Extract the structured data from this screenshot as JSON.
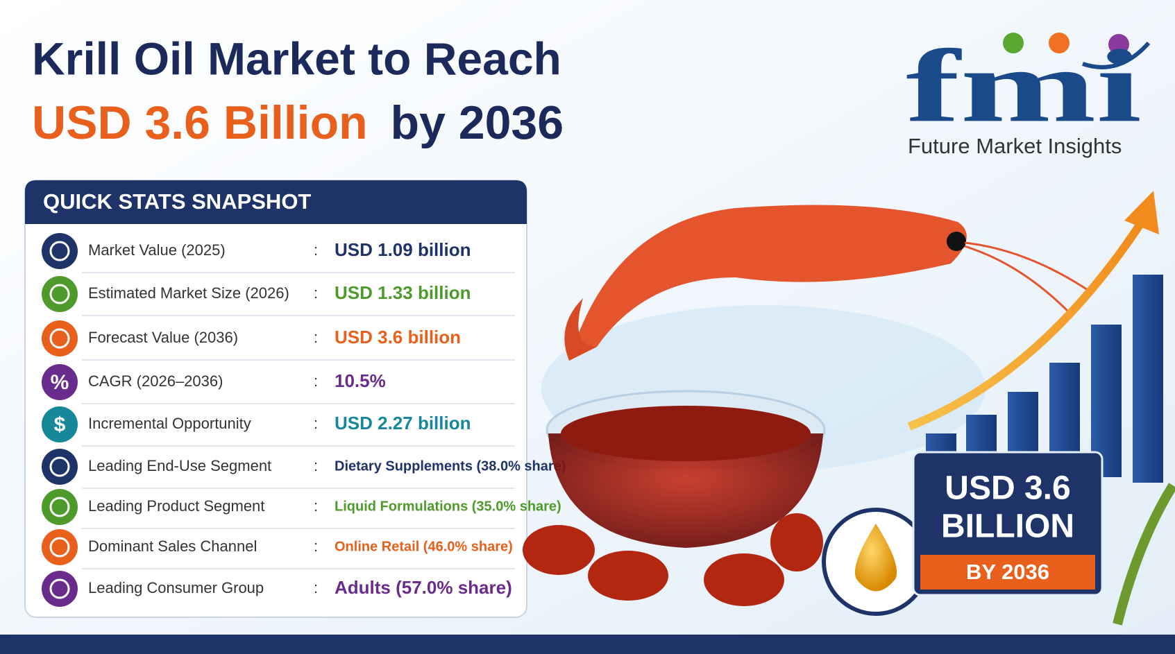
{
  "header": {
    "title_line1": "Krill Oil Market to Reach",
    "title_highlight": "USD 3.6 Billion",
    "title_rest": "by 2036"
  },
  "logo": {
    "letters": "fmi",
    "name": "Future Market Insights"
  },
  "stats": {
    "title": "QUICK STATS SNAPSHOT",
    "separator": ":",
    "rows": [
      {
        "label": "Market Value (2025)",
        "value": "USD 1.09 billion"
      },
      {
        "label": "Estimated Market Size (2026)",
        "value": "USD 1.33 billion"
      },
      {
        "label": "Forecast Value (2036)",
        "value": "USD 3.6 billion"
      },
      {
        "label": "CAGR (2026–2036)",
        "value": "10.5%",
        "icon": "%"
      },
      {
        "label": "Incremental Opportunity",
        "value": "USD 2.27 billion",
        "icon": "$"
      },
      {
        "label": "Leading End-Use Segment",
        "value": "Dietary Supplements (38.0% share)"
      },
      {
        "label": "Leading Product Segment",
        "value": "Liquid Formulations (35.0% share)"
      },
      {
        "label": "Dominant Sales Channel",
        "value": "Online Retail (46.0% share)"
      },
      {
        "label": "Leading Consumer Group",
        "value": "Adults (57.0% share)"
      }
    ]
  },
  "badge": {
    "line1": "USD 3.6",
    "line2": "BILLION",
    "line3": "BY 2036"
  }
}
